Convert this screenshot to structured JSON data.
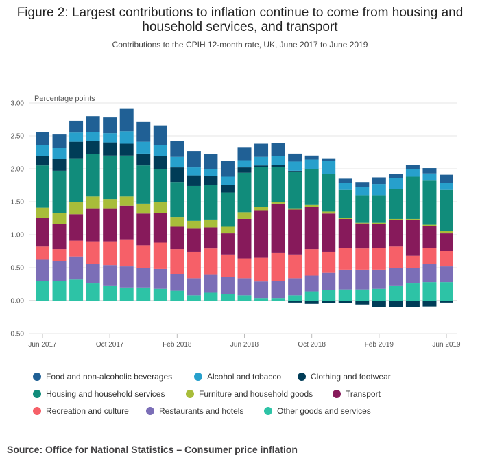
{
  "title": "Figure 2: Largest contributions to inflation continue to come from housing and household services, and transport",
  "subtitle": "Contributions to the CPIH 12-month rate, UK, June 2017 to June 2019",
  "source": "Source: Office for National Statistics – Consumer price inflation",
  "chart_data": {
    "type": "bar",
    "stacked": true,
    "ylabel": "Percentage points",
    "xlabel": "",
    "ylim": [
      -0.5,
      3.0
    ],
    "yticks": [
      "3.00",
      "2.50",
      "2.00",
      "1.50",
      "1.00",
      "0.50",
      "0.00",
      "-0.50"
    ],
    "grid": true,
    "legend_position": "bottom",
    "x_tick_labels": [
      "Jun 2017",
      "Oct 2017",
      "Feb 2018",
      "Jun 2018",
      "Oct 2018",
      "Feb 2019",
      "Jun 2019"
    ],
    "x_tick_indices": [
      0,
      4,
      8,
      12,
      16,
      20,
      24
    ],
    "categories": [
      "Jun 2017",
      "Jul 2017",
      "Aug 2017",
      "Sep 2017",
      "Oct 2017",
      "Nov 2017",
      "Dec 2017",
      "Jan 2018",
      "Feb 2018",
      "Mar 2018",
      "Apr 2018",
      "May 2018",
      "Jun 2018",
      "Jul 2018",
      "Aug 2018",
      "Sep 2018",
      "Oct 2018",
      "Nov 2018",
      "Dec 2018",
      "Jan 2019",
      "Feb 2019",
      "Mar 2019",
      "Apr 2019",
      "May 2019",
      "Jun 2019"
    ],
    "series": [
      {
        "name": "Other goods and services",
        "color": "#2dc3a6",
        "values": [
          0.3,
          0.3,
          0.32,
          0.26,
          0.22,
          0.2,
          0.2,
          0.18,
          0.15,
          0.08,
          0.12,
          0.1,
          0.08,
          0.04,
          0.04,
          0.08,
          0.14,
          0.16,
          0.17,
          0.17,
          0.18,
          0.22,
          0.26,
          0.28,
          0.28
        ]
      },
      {
        "name": "Restaurants and hotels",
        "color": "#7b6eb7",
        "values": [
          0.32,
          0.3,
          0.35,
          0.3,
          0.32,
          0.32,
          0.3,
          0.3,
          0.25,
          0.26,
          0.27,
          0.26,
          0.26,
          0.25,
          0.26,
          0.26,
          0.24,
          0.26,
          0.3,
          0.3,
          0.29,
          0.28,
          0.24,
          0.28,
          0.24
        ]
      },
      {
        "name": "Recreation and culture",
        "color": "#f66068",
        "values": [
          0.2,
          0.18,
          0.24,
          0.34,
          0.36,
          0.4,
          0.34,
          0.4,
          0.38,
          0.4,
          0.4,
          0.34,
          0.3,
          0.36,
          0.43,
          0.36,
          0.4,
          0.32,
          0.33,
          0.32,
          0.33,
          0.32,
          0.18,
          0.24,
          0.23
        ]
      },
      {
        "name": "Transport",
        "color": "#871a5b",
        "values": [
          0.43,
          0.38,
          0.4,
          0.5,
          0.5,
          0.52,
          0.48,
          0.45,
          0.34,
          0.36,
          0.32,
          0.32,
          0.6,
          0.72,
          0.74,
          0.68,
          0.64,
          0.58,
          0.44,
          0.38,
          0.36,
          0.4,
          0.55,
          0.33,
          0.27
        ]
      },
      {
        "name": "Furniture and household goods",
        "color": "#a8bd3a",
        "values": [
          0.16,
          0.17,
          0.19,
          0.18,
          0.14,
          0.14,
          0.15,
          0.16,
          0.15,
          0.11,
          0.12,
          0.1,
          0.1,
          0.05,
          0.03,
          0.02,
          0.03,
          0.03,
          0.01,
          0.01,
          0.02,
          0.02,
          0.01,
          0.02,
          0.04
        ]
      },
      {
        "name": "Housing and household services",
        "color": "#118c7b",
        "values": [
          0.64,
          0.64,
          0.66,
          0.64,
          0.66,
          0.62,
          0.58,
          0.5,
          0.53,
          0.53,
          0.52,
          0.52,
          0.6,
          0.61,
          0.53,
          0.56,
          0.55,
          0.57,
          0.43,
          0.42,
          0.42,
          0.45,
          0.64,
          0.67,
          0.62
        ]
      },
      {
        "name": "Clothing and footwear",
        "color": "#003c57",
        "values": [
          0.14,
          0.18,
          0.25,
          0.2,
          0.2,
          0.18,
          0.18,
          0.2,
          0.22,
          0.16,
          0.14,
          0.12,
          0.08,
          0.02,
          0.03,
          0.01,
          0.0,
          0.0,
          0.0,
          0.0,
          0.0,
          0.0,
          0.0,
          0.0,
          0.0
        ]
      },
      {
        "name": "Alcohol and tobacco",
        "color": "#27a0cc",
        "values": [
          0.17,
          0.17,
          0.14,
          0.14,
          0.14,
          0.19,
          0.18,
          0.17,
          0.16,
          0.12,
          0.11,
          0.12,
          0.11,
          0.13,
          0.13,
          0.14,
          0.14,
          0.2,
          0.11,
          0.12,
          0.17,
          0.17,
          0.12,
          0.11,
          0.11
        ]
      },
      {
        "name": "Food and non-alcoholic beverages",
        "color": "#206095",
        "values": [
          0.2,
          0.2,
          0.18,
          0.24,
          0.24,
          0.34,
          0.3,
          0.3,
          0.24,
          0.25,
          0.22,
          0.24,
          0.2,
          0.2,
          0.2,
          0.12,
          0.06,
          0.04,
          0.06,
          0.08,
          0.1,
          0.06,
          0.06,
          0.08,
          0.12
        ]
      },
      {
        "name": "Clothing and footwear (negative)",
        "legend": false,
        "color": "#003c57",
        "values": [
          0.0,
          0.0,
          0.0,
          0.0,
          0.0,
          0.0,
          0.0,
          0.0,
          0.0,
          0.0,
          0.0,
          0.0,
          0.0,
          -0.01,
          -0.01,
          -0.03,
          -0.05,
          -0.04,
          -0.04,
          -0.06,
          -0.1,
          -0.1,
          -0.1,
          -0.09,
          -0.03
        ]
      }
    ]
  },
  "legend": [
    {
      "label": "Food and non-alcoholic beverages",
      "color": "#206095"
    },
    {
      "label": "Alcohol and tobacco",
      "color": "#27a0cc"
    },
    {
      "label": "Clothing and footwear",
      "color": "#003c57"
    },
    {
      "label": "Housing and household services",
      "color": "#118c7b"
    },
    {
      "label": "Furniture and household goods",
      "color": "#a8bd3a"
    },
    {
      "label": "Transport",
      "color": "#871a5b"
    },
    {
      "label": "Recreation and culture",
      "color": "#f66068"
    },
    {
      "label": "Restaurants and hotels",
      "color": "#7b6eb7"
    },
    {
      "label": "Other goods and services",
      "color": "#2dc3a6"
    }
  ]
}
